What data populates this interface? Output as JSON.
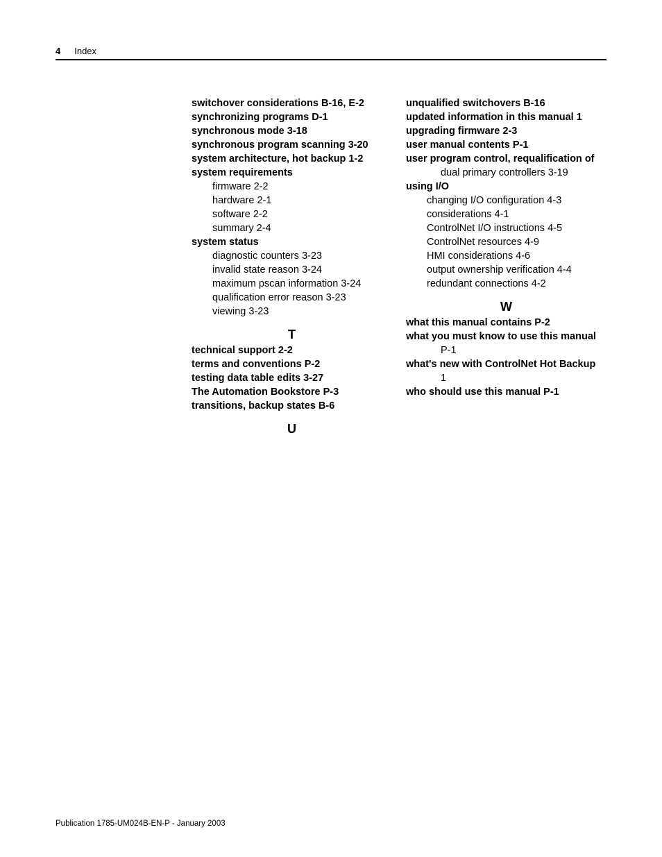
{
  "header": {
    "page_number": "4",
    "title": "Index"
  },
  "footer": "Publication 1785-UM024B-EN-P - January 2003",
  "col_left": [
    {
      "t": "switchover considerations B-16, E-2",
      "c": "bold"
    },
    {
      "t": "synchronizing programs D-1",
      "c": "bold"
    },
    {
      "t": "synchronous mode 3-18",
      "c": "bold"
    },
    {
      "t": "synchronous program scanning 3-20",
      "c": "bold"
    },
    {
      "t": "system architecture, hot backup 1-2",
      "c": "bold"
    },
    {
      "t": "system requirements",
      "c": "bold"
    },
    {
      "t": "firmware 2-2",
      "c": "sub"
    },
    {
      "t": "hardware 2-1",
      "c": "sub"
    },
    {
      "t": "software 2-2",
      "c": "sub"
    },
    {
      "t": "summary 2-4",
      "c": "sub"
    },
    {
      "t": "system status",
      "c": "bold"
    },
    {
      "t": "diagnostic counters 3-23",
      "c": "sub"
    },
    {
      "t": "invalid state reason 3-24",
      "c": "sub"
    },
    {
      "t": "maximum pscan information 3-24",
      "c": "sub"
    },
    {
      "t": "qualification error reason 3-23",
      "c": "sub"
    },
    {
      "t": "viewing 3-23",
      "c": "sub"
    },
    {
      "t": "T",
      "c": "letter-head"
    },
    {
      "t": "technical support 2-2",
      "c": "bold"
    },
    {
      "t": "terms and conventions P-2",
      "c": "bold"
    },
    {
      "t": "testing data table edits 3-27",
      "c": "bold"
    },
    {
      "t": "The Automation Bookstore P-3",
      "c": "bold"
    },
    {
      "t": "transitions, backup states B-6",
      "c": "bold"
    },
    {
      "t": "U",
      "c": "letter-head"
    }
  ],
  "col_right": [
    {
      "t": "unqualified switchovers B-16",
      "c": "bold"
    },
    {
      "t": "updated information in this manual 1",
      "c": "bold"
    },
    {
      "t": "upgrading firmware 2-3",
      "c": "bold"
    },
    {
      "t": "user manual contents P-1",
      "c": "bold"
    },
    {
      "t": "user program control, requalification of",
      "c": "bold"
    },
    {
      "t": "dual primary controllers 3-19",
      "c": "bold sub2"
    },
    {
      "t": "using I/O",
      "c": "bold"
    },
    {
      "t": "changing I/O configuration 4-3",
      "c": "sub"
    },
    {
      "t": "considerations 4-1",
      "c": "sub"
    },
    {
      "t": "ControlNet I/O instructions 4-5",
      "c": "sub"
    },
    {
      "t": "ControlNet resources 4-9",
      "c": "sub"
    },
    {
      "t": "HMI considerations 4-6",
      "c": "sub"
    },
    {
      "t": "output ownership verification 4-4",
      "c": "sub"
    },
    {
      "t": "redundant connections 4-2",
      "c": "sub"
    },
    {
      "t": "W",
      "c": "letter-head w-head-wrap"
    },
    {
      "t": "what this manual contains P-2",
      "c": "bold"
    },
    {
      "t": "what you must know to use this manual",
      "c": "bold"
    },
    {
      "t": "P-1",
      "c": "bold sub2"
    },
    {
      "t": "what's new with ControlNet Hot Backup",
      "c": "bold"
    },
    {
      "t": "1",
      "c": "bold sub2"
    },
    {
      "t": "who should use this manual P-1",
      "c": "bold"
    }
  ]
}
